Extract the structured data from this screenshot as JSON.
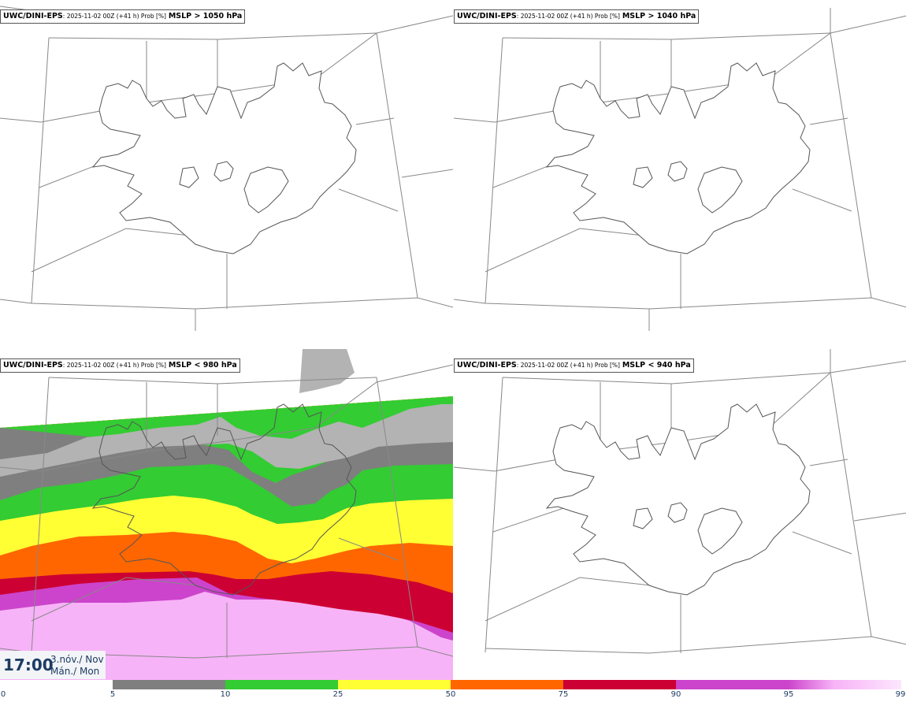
{
  "panels": [
    {
      "model": "UWC/DINI-EPS",
      "run": ": 2025-11-02 00Z (+41 h) Prob [%]",
      "condition": "MSLP > 1050 hPa"
    },
    {
      "model": "UWC/DINI-EPS",
      "run": ": 2025-11-02 00Z (+41 h) Prob [%]",
      "condition": "MSLP > 1040 hPa"
    },
    {
      "model": "UWC/DINI-EPS",
      "run": ": 2025-11-02 00Z (+41 h) Prob [%]",
      "condition": "MSLP < 980 hPa"
    },
    {
      "model": "UWC/DINI-EPS",
      "run": ": 2025-11-02 00Z (+41 h) Prob [%]",
      "condition": "MSLP < 940 hPa"
    }
  ],
  "valid_time": {
    "time": "17:00",
    "date_line1": "3.nóv./ Nov",
    "date_line2": "Mán./ Mon"
  },
  "colorbar": {
    "ticks": [
      "0",
      "5",
      "10",
      "25",
      "50",
      "75",
      "90",
      "95",
      "99"
    ],
    "colors": [
      "#ffffff",
      "#b3b3b3",
      "#7f7f7f",
      "#33cc33",
      "#ffff33",
      "#ff6600",
      "#cc0033",
      "#cc44cc",
      "#f7b3f7"
    ]
  }
}
